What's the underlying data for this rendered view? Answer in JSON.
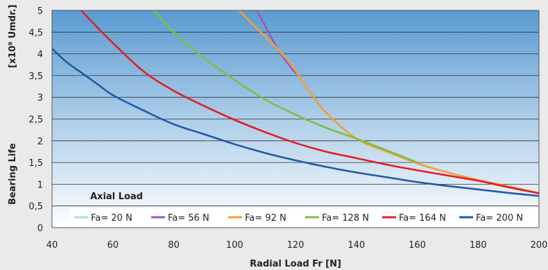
{
  "chart_data": {
    "type": "line",
    "title": "",
    "xlabel": "Radial Load Fr [N]",
    "ylabel": "Bearing Life",
    "ylabel_unit": "[x10⁹ Umdr.]",
    "xlim": [
      40,
      200
    ],
    "ylim": [
      0,
      5
    ],
    "x_ticks": [
      "40",
      "60",
      "80",
      "100",
      "120",
      "140",
      "160",
      "180",
      "200"
    ],
    "y_ticks": [
      "0",
      "0,5",
      "1",
      "1,5",
      "2",
      "2,5",
      "3",
      "3,5",
      "4",
      "4,5",
      "5"
    ],
    "grid": "horizontal",
    "legend_title": "Axial Load",
    "legend_position": "bottom",
    "series": [
      {
        "name": "Fa= 20 N",
        "color": "#a8dde8",
        "x": [],
        "y": []
      },
      {
        "name": "Fa= 56 N",
        "color": "#9b59b6",
        "x": [
          107.4,
          110,
          112,
          114,
          116,
          118,
          120
        ],
        "y": [
          5.0,
          4.65,
          4.38,
          4.14,
          3.92,
          3.73,
          3.56
        ]
      },
      {
        "name": "Fa= 92 N",
        "color": "#f5a030",
        "x": [
          101.5,
          105,
          110,
          115,
          120,
          125,
          130,
          140,
          150,
          160,
          170,
          180,
          190,
          200
        ],
        "y": [
          5.0,
          4.75,
          4.4,
          4.05,
          3.62,
          3.1,
          2.65,
          2.05,
          1.75,
          1.48,
          1.27,
          1.1,
          0.95,
          0.8
        ]
      },
      {
        "name": "Fa= 128 N",
        "color": "#7ac143",
        "x": [
          73.5,
          80,
          90,
          100,
          110,
          120,
          130,
          140,
          150,
          160
        ],
        "y": [
          5.0,
          4.5,
          3.9,
          3.4,
          2.95,
          2.6,
          2.3,
          2.05,
          1.78,
          1.5
        ]
      },
      {
        "name": "Fa= 164 N",
        "color": "#e21e26",
        "x": [
          49.5,
          55,
          60,
          70,
          80,
          90,
          100,
          110,
          120,
          130,
          140,
          150,
          160,
          170,
          180,
          190,
          200
        ],
        "y": [
          5.0,
          4.6,
          4.25,
          3.6,
          3.15,
          2.8,
          2.48,
          2.2,
          1.95,
          1.75,
          1.6,
          1.45,
          1.32,
          1.2,
          1.08,
          0.93,
          0.79
        ]
      },
      {
        "name": "Fa= 200 N",
        "color": "#1f5aa6",
        "x": [
          40,
          45,
          50,
          55,
          60,
          70,
          80,
          90,
          100,
          110,
          120,
          130,
          140,
          150,
          160,
          170,
          180,
          190,
          200
        ],
        "y": [
          4.12,
          3.8,
          3.55,
          3.3,
          3.05,
          2.7,
          2.38,
          2.15,
          1.92,
          1.72,
          1.55,
          1.4,
          1.27,
          1.16,
          1.05,
          0.96,
          0.88,
          0.8,
          0.73
        ]
      }
    ]
  }
}
